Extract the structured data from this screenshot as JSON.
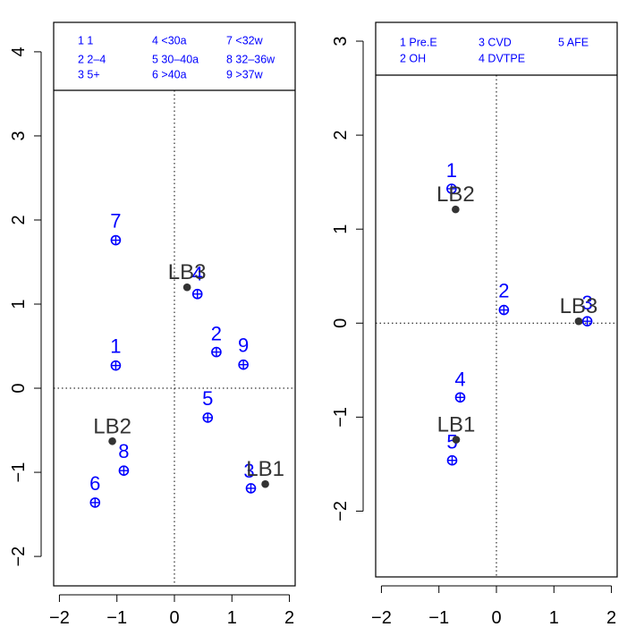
{
  "chart_data": [
    {
      "type": "scatter",
      "xlim": [
        -2.1,
        2.1
      ],
      "ylim": [
        -2.35,
        4.35
      ],
      "xticks": [
        -2,
        -1,
        0,
        1,
        2
      ],
      "yticks": [
        -2,
        -1,
        0,
        1,
        2,
        3,
        4
      ],
      "reference_lines": {
        "x": 0,
        "y": 0,
        "style": "dotted"
      },
      "legend": {
        "placement": "top",
        "columns": [
          [
            "1 1",
            "2 2–4",
            "3 5+"
          ],
          [
            "4 <30a",
            "5 30–40a",
            "6 >40a"
          ],
          [
            "7 <32w",
            "8 32–36w",
            "9 >37w"
          ]
        ]
      },
      "series": [
        {
          "marker": "circle-plus",
          "color": "#0000ff",
          "points": [
            {
              "label": "1",
              "x": -1.02,
              "y": 0.27
            },
            {
              "label": "2",
              "x": 0.73,
              "y": 0.43
            },
            {
              "label": "3",
              "x": 1.33,
              "y": -1.19
            },
            {
              "label": "4",
              "x": 0.4,
              "y": 1.12
            },
            {
              "label": "5",
              "x": 0.58,
              "y": -0.35
            },
            {
              "label": "6",
              "x": -1.38,
              "y": -1.36
            },
            {
              "label": "7",
              "x": -1.02,
              "y": 1.76
            },
            {
              "label": "8",
              "x": -0.88,
              "y": -0.98
            },
            {
              "label": "9",
              "x": 1.2,
              "y": 0.28
            }
          ]
        },
        {
          "marker": "filled-circle",
          "color": "#333333",
          "points": [
            {
              "label": "LB1",
              "x": 1.58,
              "y": -1.14
            },
            {
              "label": "LB2",
              "x": -1.08,
              "y": -0.63
            },
            {
              "label": "LB3",
              "x": 0.22,
              "y": 1.2
            }
          ]
        }
      ]
    },
    {
      "type": "scatter",
      "xlim": [
        -2.1,
        2.1
      ],
      "ylim": [
        -2.7,
        3.2
      ],
      "xticks": [
        -2,
        -1,
        0,
        1,
        2
      ],
      "yticks": [
        -2,
        -1,
        0,
        1,
        2,
        3
      ],
      "reference_lines": {
        "x": 0,
        "y": 0,
        "style": "dotted"
      },
      "legend": {
        "placement": "top",
        "columns": [
          [
            "1 Pre.E",
            "2 OH"
          ],
          [
            "3 CVD",
            "4 DVTPE"
          ],
          [
            "5 AFE"
          ]
        ]
      },
      "series": [
        {
          "marker": "circle-plus",
          "color": "#0000ff",
          "points": [
            {
              "label": "1",
              "x": -0.78,
              "y": 1.43
            },
            {
              "label": "2",
              "x": 0.13,
              "y": 0.14
            },
            {
              "label": "3",
              "x": 1.58,
              "y": 0.02
            },
            {
              "label": "4",
              "x": -0.63,
              "y": -0.79
            },
            {
              "label": "5",
              "x": -0.77,
              "y": -1.46
            }
          ]
        },
        {
          "marker": "filled-circle",
          "color": "#333333",
          "points": [
            {
              "label": "LB1",
              "x": -0.7,
              "y": -1.24
            },
            {
              "label": "LB2",
              "x": -0.71,
              "y": 1.21
            },
            {
              "label": "LB3",
              "x": 1.43,
              "y": 0.02
            }
          ]
        }
      ]
    }
  ]
}
